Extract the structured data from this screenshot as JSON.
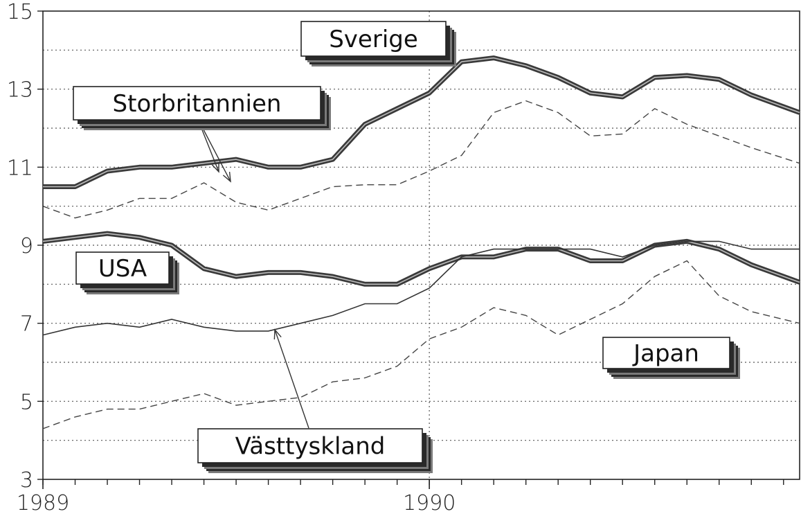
{
  "chart_data": {
    "type": "line",
    "title": "",
    "xlabel": "",
    "ylabel": "",
    "x_ticks": [
      "1989",
      "1990"
    ],
    "x_range": [
      1989.0,
      1990.9583
    ],
    "ylim": [
      3,
      15
    ],
    "y_ticks": [
      "3",
      "5",
      "7",
      "9",
      "11",
      "13",
      "15"
    ],
    "grid": true,
    "series": [
      {
        "name": "Sverige",
        "style": "thick",
        "x": [
          1989.0,
          1989.0833,
          1989.1667,
          1989.25,
          1989.3333,
          1989.4167,
          1989.5,
          1989.5833,
          1989.6667,
          1989.75,
          1989.8333,
          1989.9167,
          1990.0,
          1990.0833,
          1990.1667,
          1990.25,
          1990.3333,
          1990.4167,
          1990.5,
          1990.5833,
          1990.6667,
          1990.75,
          1990.8333,
          1990.9583
        ],
        "values": [
          10.5,
          10.5,
          10.9,
          11.0,
          11.0,
          11.1,
          11.2,
          11.0,
          11.0,
          11.2,
          12.1,
          12.5,
          12.9,
          13.7,
          13.8,
          13.6,
          13.3,
          12.9,
          12.8,
          13.3,
          13.35,
          13.25,
          12.85,
          12.4
        ]
      },
      {
        "name": "Storbritannien",
        "style": "dashed",
        "x": [
          1989.0,
          1989.0833,
          1989.1667,
          1989.25,
          1989.3333,
          1989.4167,
          1989.5,
          1989.5833,
          1989.6667,
          1989.75,
          1989.8333,
          1989.9167,
          1990.0,
          1990.0833,
          1990.1667,
          1990.25,
          1990.3333,
          1990.4167,
          1990.5,
          1990.5833,
          1990.6667,
          1990.75,
          1990.8333,
          1990.9583
        ],
        "values": [
          10.0,
          9.7,
          9.9,
          10.2,
          10.2,
          10.6,
          10.1,
          9.9,
          10.2,
          10.5,
          10.55,
          10.55,
          10.9,
          11.3,
          12.4,
          12.7,
          12.4,
          11.8,
          11.85,
          12.5,
          12.1,
          11.8,
          11.5,
          11.1
        ]
      },
      {
        "name": "USA",
        "style": "thick",
        "x": [
          1989.0,
          1989.0833,
          1989.1667,
          1989.25,
          1989.3333,
          1989.4167,
          1989.5,
          1989.5833,
          1989.6667,
          1989.75,
          1989.8333,
          1989.9167,
          1990.0,
          1990.0833,
          1990.1667,
          1990.25,
          1990.3333,
          1990.4167,
          1990.5,
          1990.5833,
          1990.6667,
          1990.75,
          1990.8333,
          1990.9583
        ],
        "values": [
          9.1,
          9.2,
          9.3,
          9.2,
          9.0,
          8.4,
          8.2,
          8.3,
          8.3,
          8.2,
          8.0,
          8.0,
          8.4,
          8.7,
          8.7,
          8.9,
          8.9,
          8.6,
          8.6,
          9.0,
          9.1,
          8.9,
          8.5,
          8.05
        ]
      },
      {
        "name": "Västtyskland",
        "style": "thin",
        "x": [
          1989.0,
          1989.0833,
          1989.1667,
          1989.25,
          1989.3333,
          1989.4167,
          1989.5,
          1989.5833,
          1989.6667,
          1989.75,
          1989.8333,
          1989.9167,
          1990.0,
          1990.0833,
          1990.1667,
          1990.25,
          1990.3333,
          1990.4167,
          1990.5,
          1990.5833,
          1990.6667,
          1990.75,
          1990.8333,
          1990.9583
        ],
        "values": [
          6.7,
          6.9,
          7.0,
          6.9,
          7.1,
          6.9,
          6.8,
          6.8,
          7.0,
          7.2,
          7.5,
          7.5,
          7.9,
          8.7,
          8.9,
          8.9,
          8.9,
          8.9,
          8.7,
          9.0,
          9.1,
          9.1,
          8.9,
          8.9
        ]
      },
      {
        "name": "Japan",
        "style": "dashed",
        "x": [
          1989.0,
          1989.0833,
          1989.1667,
          1989.25,
          1989.3333,
          1989.4167,
          1989.5,
          1989.5833,
          1989.6667,
          1989.75,
          1989.8333,
          1989.9167,
          1990.0,
          1990.0833,
          1990.1667,
          1990.25,
          1990.3333,
          1990.4167,
          1990.5,
          1990.5833,
          1990.6667,
          1990.75,
          1990.8333,
          1990.9583
        ],
        "values": [
          4.3,
          4.6,
          4.8,
          4.8,
          5.0,
          5.2,
          4.9,
          5.0,
          5.1,
          5.5,
          5.6,
          5.9,
          6.6,
          6.9,
          7.4,
          7.2,
          6.7,
          7.1,
          7.5,
          8.2,
          8.6,
          7.7,
          7.3,
          7.0
        ]
      }
    ],
    "labels": [
      {
        "text": "Sverige",
        "series": "Sverige"
      },
      {
        "text": "Storbritannien",
        "series": "Storbritannien"
      },
      {
        "text": "USA",
        "series": "USA"
      },
      {
        "text": "Japan",
        "series": "Japan"
      },
      {
        "text": "Västtyskland",
        "series": "Västtyskland"
      }
    ]
  }
}
